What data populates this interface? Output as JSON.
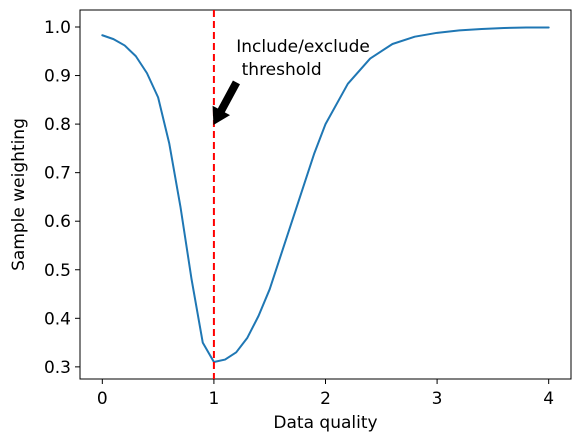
{
  "chart_data": {
    "type": "line",
    "title": "",
    "xlabel": "Data quality",
    "ylabel": "Sample weighting",
    "xlim": [
      -0.2,
      4.2
    ],
    "ylim": [
      0.275,
      1.035
    ],
    "xticks": [
      0,
      1,
      2,
      3,
      4
    ],
    "xtick_labels": [
      "0",
      "1",
      "2",
      "3",
      "4"
    ],
    "yticks": [
      0.3,
      0.4,
      0.5,
      0.6,
      0.7,
      0.8,
      0.9,
      1.0
    ],
    "ytick_labels": [
      "0.3",
      "0.4",
      "0.5",
      "0.6",
      "0.7",
      "0.8",
      "0.9",
      "1.0"
    ],
    "grid": false,
    "series": [
      {
        "color": "#1f77b4",
        "x": [
          0.0,
          0.1,
          0.2,
          0.3,
          0.4,
          0.5,
          0.6,
          0.7,
          0.8,
          0.9,
          1.0,
          1.1,
          1.2,
          1.3,
          1.4,
          1.5,
          1.6,
          1.7,
          1.8,
          1.9,
          2.0,
          2.2,
          2.4,
          2.6,
          2.8,
          3.0,
          3.2,
          3.4,
          3.6,
          3.8,
          4.0
        ],
        "y": [
          0.983,
          0.975,
          0.962,
          0.94,
          0.905,
          0.855,
          0.76,
          0.63,
          0.48,
          0.35,
          0.31,
          0.315,
          0.33,
          0.36,
          0.405,
          0.46,
          0.53,
          0.6,
          0.67,
          0.74,
          0.8,
          0.883,
          0.935,
          0.965,
          0.98,
          0.988,
          0.993,
          0.996,
          0.998,
          0.999,
          0.999
        ]
      }
    ],
    "threshold": {
      "x": 1,
      "color": "#ff0000",
      "style": "dashed"
    },
    "annotation": {
      "lines": [
        "Include/exclude",
        " threshold"
      ],
      "arrow_from": [
        1.2,
        0.885
      ],
      "arrow_to": [
        1.0,
        0.8
      ],
      "arrow_color": "#000000"
    }
  }
}
